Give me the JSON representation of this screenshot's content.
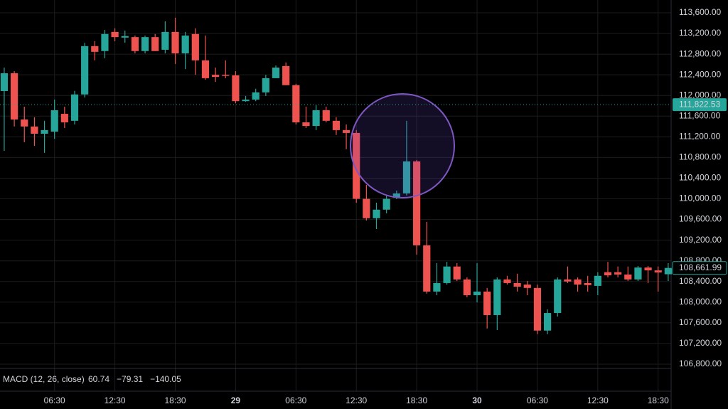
{
  "chart_data": {
    "type": "candlestick",
    "open": [
      112086,
      112430,
      111535,
      111400,
      111260,
      111300,
      111645,
      111510,
      112020,
      112955,
      112860,
      113230,
      113120,
      113130,
      112860,
      113130,
      112885,
      113230,
      112815,
      113190,
      112680,
      112400,
      112400,
      112390,
      111890,
      111920,
      112060,
      112335,
      112570,
      112200,
      111480,
      111410,
      111715,
      111510,
      111330,
      111275,
      110000,
      109625,
      109790,
      110020,
      110105,
      110725,
      109100,
      108205,
      108370,
      108690,
      108440,
      108135,
      108205,
      107750,
      108440,
      108370,
      108340,
      108275,
      107450,
      107790,
      108440,
      108440,
      108370,
      108315,
      108580,
      108580,
      108535,
      108440,
      108670,
      108615,
      108540
    ],
    "high": [
      112540,
      112471,
      111783,
      111580,
      111510,
      111920,
      111783,
      112090,
      113020,
      113050,
      113270,
      113300,
      113255,
      113160,
      113160,
      113190,
      113435,
      113505,
      113230,
      113300,
      113160,
      112540,
      112680,
      112470,
      111990,
      112130,
      112400,
      112580,
      112640,
      112225,
      111783,
      111810,
      111783,
      111580,
      111440,
      111330,
      110270,
      109925,
      110065,
      110160,
      111510,
      110750,
      109555,
      108755,
      108780,
      108755,
      108480,
      108755,
      108275,
      108480,
      108510,
      108550,
      108410,
      108340,
      107860,
      108480,
      108690,
      108480,
      108510,
      108580,
      108780,
      108690,
      108690,
      108700,
      108700,
      108690,
      108755
    ],
    "low": [
      110930,
      111400,
      111095,
      111025,
      110890,
      111160,
      111370,
      111440,
      111960,
      112680,
      112720,
      113050,
      113020,
      112815,
      112815,
      112860,
      112815,
      112610,
      112510,
      112400,
      112305,
      112265,
      112335,
      111850,
      111880,
      111890,
      111990,
      112335,
      112200,
      111440,
      111370,
      111330,
      111480,
      111235,
      110960,
      109925,
      109580,
      109415,
      109720,
      109995,
      110065,
      108920,
      108165,
      108135,
      108340,
      108410,
      108095,
      107995,
      107490,
      107460,
      108340,
      108205,
      108135,
      107380,
      107380,
      107720,
      108370,
      108205,
      108205,
      108135,
      108480,
      108480,
      108410,
      108410,
      108370,
      108205,
      108410
    ],
    "close": [
      112430,
      111535,
      111400,
      111260,
      111330,
      111715,
      111480,
      112020,
      112955,
      112845,
      113190,
      113130,
      113150,
      112860,
      113130,
      112860,
      113230,
      112815,
      113160,
      112680,
      112335,
      112360,
      112380,
      111890,
      111920,
      112060,
      112335,
      112540,
      112200,
      111480,
      111410,
      111715,
      111510,
      111330,
      111275,
      110000,
      109625,
      109790,
      110000,
      110105,
      110725,
      109100,
      108205,
      108370,
      108690,
      108440,
      108135,
      108205,
      107750,
      108440,
      108370,
      108300,
      108275,
      107450,
      107790,
      108440,
      108400,
      108340,
      108330,
      108510,
      108520,
      108535,
      108440,
      108670,
      108615,
      108575,
      108662
    ],
    "up_color": "#26a69a",
    "down_color": "#ef5350",
    "xlim": [
      -0.42,
      66.29
    ],
    "xticks": [
      {
        "value": 5,
        "label": "06:30"
      },
      {
        "value": 11,
        "label": "12:30"
      },
      {
        "value": 17,
        "label": "18:30"
      },
      {
        "value": 23,
        "label": "29"
      },
      {
        "value": 29,
        "label": "06:30"
      },
      {
        "value": 35,
        "label": "12:30"
      },
      {
        "value": 41,
        "label": "18:30"
      },
      {
        "value": 47,
        "label": "30"
      },
      {
        "value": 53,
        "label": "06:30"
      },
      {
        "value": 59,
        "label": "12:30"
      },
      {
        "value": 65,
        "label": "18:30"
      }
    ],
    "ylim": [
      106717,
      113848
    ],
    "yticks": [
      {
        "value": 106800,
        "label": "106,800.00"
      },
      {
        "value": 107200,
        "label": "107,200.00"
      },
      {
        "value": 107600,
        "label": "107,600.00"
      },
      {
        "value": 108000,
        "label": "108,000.00"
      },
      {
        "value": 108400,
        "label": "108,400.00"
      },
      {
        "value": 108800,
        "label": "108,800.00"
      },
      {
        "value": 109200,
        "label": "109,200.00"
      },
      {
        "value": 109600,
        "label": "109,600.00"
      },
      {
        "value": 110000,
        "label": "110,000.00"
      },
      {
        "value": 110400,
        "label": "110,400.00"
      },
      {
        "value": 110800,
        "label": "110,800.00"
      },
      {
        "value": 111200,
        "label": "111,200.00"
      },
      {
        "value": 111600,
        "label": "111,600.00"
      },
      {
        "value": 112000,
        "label": "112,000.00"
      },
      {
        "value": 112400,
        "label": "112,400.00"
      },
      {
        "value": 112800,
        "label": "112,800.00"
      },
      {
        "value": 113200,
        "label": "113,200.00"
      },
      {
        "value": 113600,
        "label": "113,600.00"
      }
    ],
    "grid": true,
    "price_lines": [
      {
        "value": 111822.53,
        "label": "111,822.53",
        "style": "filled"
      },
      {
        "value": 108661.99,
        "label": "108,661.99",
        "style": "outline"
      }
    ],
    "indicator": {
      "name": "MACD (12, 26, close)",
      "values": [
        {
          "label": "60.74",
          "color": "#26a69a"
        },
        {
          "label": "−79.31",
          "color": "#2962ff"
        },
        {
          "label": "−140.05",
          "color": "#f57c00"
        }
      ]
    }
  }
}
